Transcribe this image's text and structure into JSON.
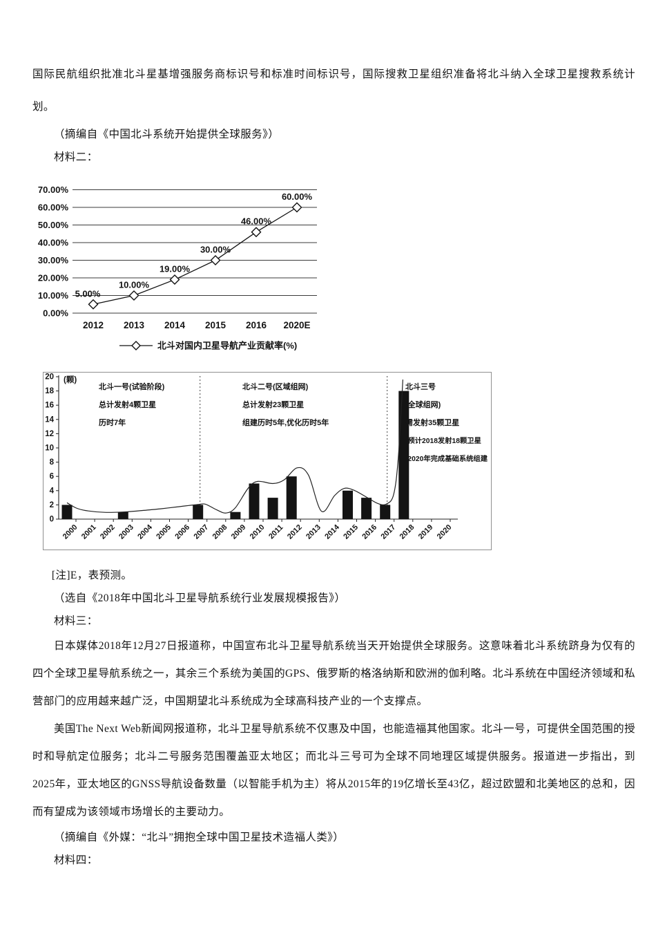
{
  "document": {
    "paragraph1": "国际民航组织批准北斗星基增强服务商标识号和标准时间标识号，国际搜救卫星组织准备将北斗纳入全球卫星搜救系统计划。",
    "attribution1": "（摘编自《中国北斗系统开始提供全球服务》）",
    "material2_label": "材料二：",
    "note": "[注]E，表预测。",
    "attribution2": "（选自《2018年中国北斗卫星导航系统行业发展规模报告》）",
    "material3_label": "材料三：",
    "paragraph2": "日本媒体2018年12月27日报道称，中国宣布北斗卫星导航系统当天开始提供全球服务。这意味着北斗系统跻身为仅有的四个全球卫星导航系统之一，其余三个系统为美国的GPS、俄罗斯的格洛纳斯和欧洲的伽利略。北斗系统在中国经济领域和私营部门的应用越来越广泛，中国期望北斗系统成为全球高科技产业的一个支撑点。",
    "paragraph3": "美国The Next Web新闻网报道称，北斗卫星导航系统不仅惠及中国，也能造福其他国家。北斗一号，可提供全国范围的授时和导航定位服务；北斗二号服务范围覆盖亚太地区；而北斗三号可为全球不同地理区域提供服务。报道进一步指出，到2025年，亚太地区的GNSS导航设备数量（以智能手机为主）将从2015年的19亿增长至43亿，超过欧盟和北美地区的总和，因而有望成为该领域市场增长的主要动力。",
    "attribution3": "（摘编自《外媒：“北斗”拥抱全球中国卫星技术造福人类》）",
    "material4_label": "材料四："
  },
  "chart_data": [
    {
      "type": "line",
      "title": "",
      "categories": [
        "2012",
        "2013",
        "2014",
        "2015",
        "2016",
        "2020E"
      ],
      "values": [
        5.0,
        10.0,
        19.0,
        30.0,
        46.0,
        60.0
      ],
      "point_labels": [
        "5.00%",
        "10.00%",
        "19.00%",
        "30.00%",
        "46.00%",
        "60.00%"
      ],
      "ytick_labels": [
        "0.00%",
        "10.00%",
        "20.00%",
        "30.00%",
        "40.00%",
        "50.00%",
        "60.00%",
        "70.00%"
      ],
      "ylim": [
        0,
        70
      ],
      "grid": "horizontal",
      "marker": "open-diamond",
      "legend": "北斗对国内卫星导航产业贡献率(%)",
      "legend_position": "bottom"
    },
    {
      "type": "bar",
      "title": "",
      "unit_label": "(颗)",
      "categories": [
        "2000",
        "2001",
        "2002",
        "2003",
        "2004",
        "2005",
        "2006",
        "2007",
        "2008",
        "2009",
        "2010",
        "2011",
        "2012",
        "2013",
        "2014",
        "2015",
        "2016",
        "2017",
        "2018",
        "2019",
        "2020"
      ],
      "values": [
        2,
        0,
        0,
        1,
        0,
        0,
        0,
        2,
        0,
        1,
        5,
        3,
        6,
        0,
        0,
        4,
        3,
        2,
        18,
        0,
        0
      ],
      "ylim": [
        0,
        20
      ],
      "ytick_step": 2,
      "dashed_dividers_at": [
        "2007",
        "2017"
      ],
      "trend_curve_points": [
        [
          0,
          2.3
        ],
        [
          0.5,
          1.55
        ],
        [
          1,
          1.2
        ],
        [
          2,
          0.95
        ],
        [
          3,
          1.0
        ],
        [
          4,
          1.2
        ],
        [
          5,
          1.45
        ],
        [
          6,
          1.75
        ],
        [
          7,
          2.05
        ],
        [
          7.4,
          2.1
        ],
        [
          8,
          1.3
        ],
        [
          8.5,
          0.85
        ],
        [
          9,
          1.6
        ],
        [
          9.7,
          4.4
        ],
        [
          10.2,
          5.3
        ],
        [
          11,
          5.0
        ],
        [
          11.6,
          5.5
        ],
        [
          12.3,
          7.2
        ],
        [
          12.9,
          6.2
        ],
        [
          13.6,
          1.1
        ],
        [
          14.3,
          3.3
        ],
        [
          14.8,
          4.3
        ],
        [
          15.3,
          4.1
        ],
        [
          16,
          3.1
        ],
        [
          16.6,
          2.2
        ],
        [
          17.05,
          2.1
        ],
        [
          17.45,
          3.4
        ],
        [
          17.7,
          8.5
        ],
        [
          17.95,
          19.6
        ]
      ],
      "annotations": [
        {
          "lines": [
            "北斗一号(试验阶段)",
            "总计发射4颗卫星",
            "历时7年"
          ]
        },
        {
          "lines": [
            "北斗二号(区域组网)",
            "总计发射23颗卫星",
            "组建历时5年,优化历时5年"
          ]
        },
        {
          "lines": [
            "北斗三号",
            "(全球组网)",
            "需发射35颗卫星",
            "·预计2018发射18颗卫星",
            "·2020年完成基础系统组建"
          ]
        }
      ]
    }
  ]
}
